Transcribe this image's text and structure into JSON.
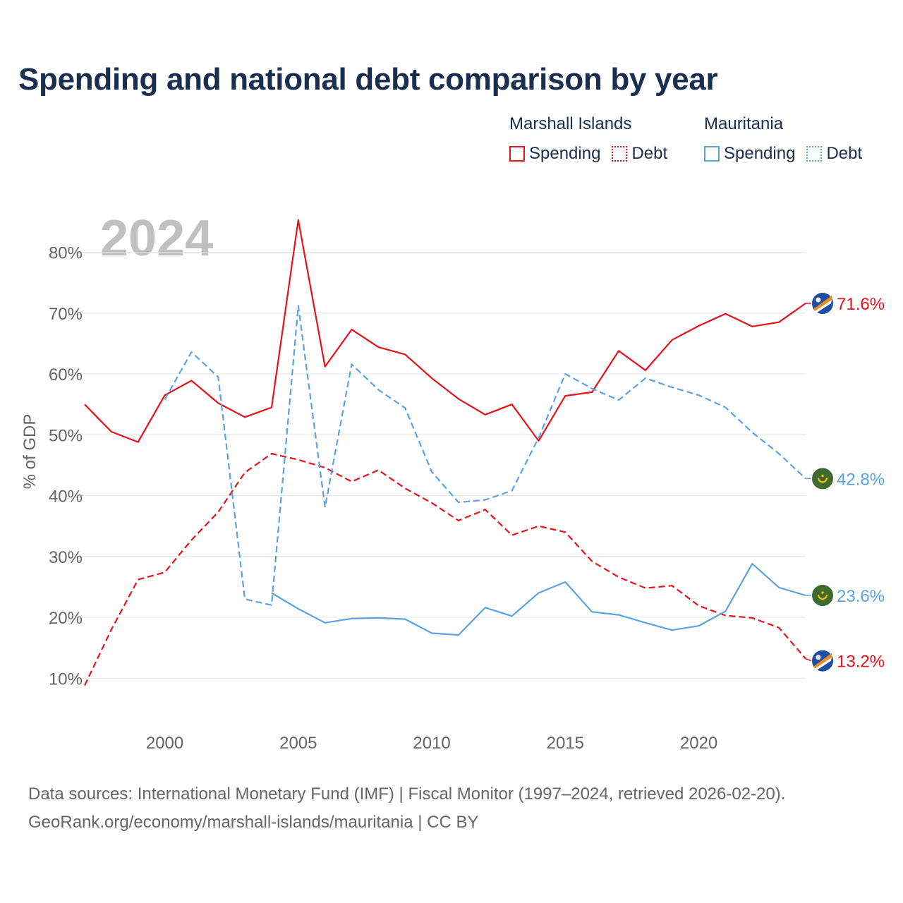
{
  "title": "Spending and national debt comparison by year",
  "legend": {
    "group1": {
      "name": "Marshall Islands",
      "spending": "Spending",
      "debt": "Debt"
    },
    "group2": {
      "name": "Mauritania",
      "spending": "Spending",
      "debt": "Debt"
    }
  },
  "footer": {
    "line1": "Data sources: International Monetary Fund (IMF) | Fiscal Monitor (1997–2024, retrieved 2026-02-20).",
    "line2": "GeoRank.org/economy/marshall-islands/mauritania | CC BY"
  },
  "colors": {
    "marshall": "#e8121b",
    "mauritania": "#5aa3e2",
    "title": "#1a2e4f"
  },
  "chart_data": {
    "type": "line",
    "title": "Spending and national debt comparison by year",
    "year_label": "2024",
    "ylabel": "% of GDP",
    "xlim": [
      1997,
      2024
    ],
    "ylim": [
      7,
      86
    ],
    "y_ticks": [
      10,
      20,
      30,
      40,
      50,
      60,
      70,
      80
    ],
    "y_tick_labels": [
      "10%",
      "20%",
      "30%",
      "40%",
      "50%",
      "60%",
      "70%",
      "80%"
    ],
    "x_ticks": [
      2000,
      2005,
      2010,
      2015,
      2020
    ],
    "x_tick_labels": [
      "2000",
      "2005",
      "2010",
      "2015",
      "2020"
    ],
    "grid": true,
    "series": [
      {
        "name": "Marshall Islands Spending",
        "country": "Marshall Islands",
        "metric": "Spending",
        "dash": "solid",
        "color": "#e8121b",
        "end_label": "71.6%",
        "flag": "marshall-islands-flag-icon",
        "x": [
          1997,
          1998,
          1999,
          2000,
          2001,
          2002,
          2003,
          2004,
          2005,
          2006,
          2007,
          2008,
          2009,
          2010,
          2011,
          2012,
          2013,
          2014,
          2015,
          2016,
          2017,
          2018,
          2019,
          2020,
          2021,
          2022,
          2023,
          2024
        ],
        "values": [
          55.0,
          50.5,
          48.8,
          56.5,
          58.9,
          55.2,
          52.9,
          54.5,
          85.3,
          61.2,
          67.3,
          64.4,
          63.2,
          59.3,
          55.9,
          53.3,
          55.0,
          49.0,
          56.4,
          57.0,
          63.8,
          60.6,
          65.6,
          67.9,
          69.9,
          67.8,
          68.5,
          71.6
        ]
      },
      {
        "name": "Marshall Islands Debt",
        "country": "Marshall Islands",
        "metric": "Debt",
        "dash": "dashed",
        "color": "#e8121b",
        "end_label": "13.2%",
        "flag": "marshall-islands-flag-icon",
        "x": [
          1997,
          1998,
          1999,
          2000,
          2001,
          2002,
          2003,
          2004,
          2005,
          2006,
          2007,
          2008,
          2009,
          2010,
          2011,
          2012,
          2013,
          2014,
          2015,
          2016,
          2017,
          2018,
          2019,
          2020,
          2021,
          2022,
          2023,
          2024
        ],
        "values": [
          8.8,
          18.0,
          26.2,
          27.4,
          32.7,
          37.3,
          43.8,
          46.9,
          45.9,
          44.6,
          42.3,
          44.2,
          41.2,
          38.8,
          35.9,
          37.7,
          33.5,
          35.0,
          34.0,
          29.2,
          26.6,
          24.8,
          25.2,
          21.9,
          20.3,
          19.9,
          18.3,
          13.2
        ]
      },
      {
        "name": "Mauritania Spending",
        "country": "Mauritania",
        "metric": "Spending",
        "dash": "solid",
        "color": "#5aa3e2",
        "end_label": "23.6%",
        "flag": "mauritania-flag-icon",
        "x": [
          2004,
          2005,
          2006,
          2007,
          2008,
          2009,
          2010,
          2011,
          2012,
          2013,
          2014,
          2015,
          2016,
          2017,
          2018,
          2019,
          2020,
          2021,
          2022,
          2023,
          2024
        ],
        "values": [
          24.0,
          21.4,
          19.1,
          19.8,
          19.9,
          19.7,
          17.4,
          17.1,
          21.6,
          20.2,
          24.0,
          25.8,
          20.9,
          20.4,
          19.1,
          17.9,
          18.6,
          21.0,
          28.8,
          24.9,
          23.6
        ]
      },
      {
        "name": "Mauritania Debt",
        "country": "Mauritania",
        "metric": "Debt",
        "dash": "dashed",
        "color": "#5aa3e2",
        "end_label": "42.8%",
        "flag": "mauritania-flag-icon",
        "x": [
          2000,
          2001,
          2002,
          2003,
          2004,
          2005,
          2006,
          2007,
          2008,
          2009,
          2010,
          2011,
          2012,
          2013,
          2014,
          2015,
          2016,
          2017,
          2018,
          2019,
          2020,
          2021,
          2022,
          2023,
          2024
        ],
        "values": [
          55.8,
          63.6,
          59.5,
          23.0,
          22.0,
          71.2,
          38.1,
          61.6,
          57.4,
          54.4,
          43.9,
          38.9,
          39.3,
          40.8,
          49.5,
          60.0,
          57.6,
          55.7,
          59.3,
          57.8,
          56.5,
          54.5,
          50.4,
          46.9,
          42.8
        ]
      }
    ]
  }
}
